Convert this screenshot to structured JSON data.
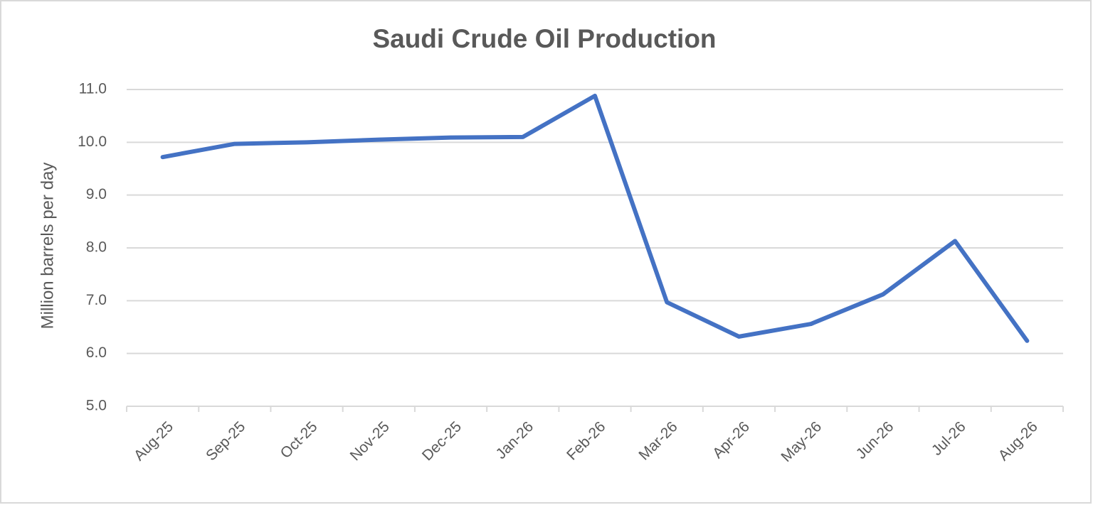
{
  "chart_data": {
    "type": "line",
    "title": "Saudi Crude Oil Production",
    "y_label": "Million barrels per day",
    "categories": [
      "Aug-25",
      "Sep-25",
      "Oct-25",
      "Nov-25",
      "Dec-25",
      "Jan-26",
      "Feb-26",
      "Mar-26",
      "Apr-26",
      "May-26",
      "Jun-26",
      "Jul-26",
      "Aug-26"
    ],
    "values": [
      9.72,
      9.97,
      10.0,
      10.05,
      10.09,
      10.1,
      10.88,
      6.97,
      6.32,
      6.56,
      7.12,
      8.13,
      6.24
    ],
    "color": "#4472c4",
    "ylim": [
      5,
      11
    ],
    "yticks": [
      {
        "value": 5,
        "label": "5.0"
      },
      {
        "value": 6,
        "label": "6.0"
      },
      {
        "value": 7,
        "label": "7.0"
      },
      {
        "value": 8,
        "label": "8.0"
      },
      {
        "value": 9,
        "label": "9.0"
      },
      {
        "value": 10,
        "label": "10.0"
      },
      {
        "value": 11,
        "label": "11.0"
      }
    ],
    "grid": true
  }
}
